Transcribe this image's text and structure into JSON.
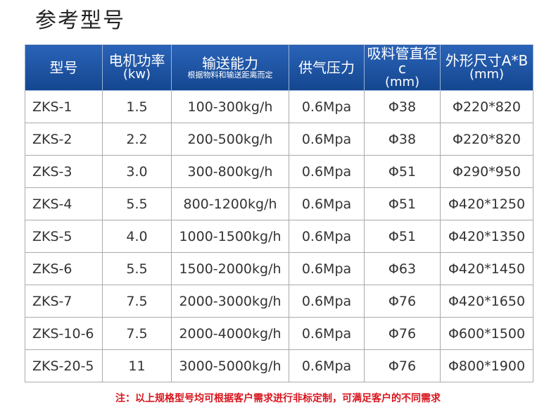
{
  "title": "参考型号",
  "table": {
    "header": [
      [
        "型号"
      ],
      [
        "电机功率",
        "(kw)"
      ],
      [
        "输送能力",
        "根据物料和输送距离而定"
      ],
      [
        "供气压力"
      ],
      [
        "吸料管直径c",
        "(mm)"
      ],
      [
        "外形尺寸A*B",
        "(mm)"
      ]
    ],
    "rows": [
      [
        "ZKS-1",
        "1.5",
        "100-300kg/h",
        "0.6Mpa",
        "Φ38",
        "Φ220*820"
      ],
      [
        "ZKS-2",
        "2.2",
        "200-500kg/h",
        "0.6Mpa",
        "Φ38",
        "Φ220*820"
      ],
      [
        "ZKS-3",
        "3.0",
        "300-800kg/h",
        "0.6Mpa",
        "Φ51",
        "Φ290*950"
      ],
      [
        "ZKS-4",
        "5.5",
        "800-1200kg/h",
        "0.6Mpa",
        "Φ51",
        "Φ420*1250"
      ],
      [
        "ZKS-5",
        "4.0",
        "1000-1500kg/h",
        "0.6Mpa",
        "Φ51",
        "Φ420*1350"
      ],
      [
        "ZKS-6",
        "5.5",
        "1500-2000kg/h",
        "0.6Mpa",
        "Φ63",
        "Φ420*1450"
      ],
      [
        "ZKS-7",
        "7.5",
        "2000-3000kg/h",
        "0.6Mpa",
        "Φ76",
        "Φ420*1650"
      ],
      [
        "ZKS-10-6",
        "7.5",
        "2000-4000kg/h",
        "0.6Mpa",
        "Φ76",
        "Φ600*1500"
      ],
      [
        "ZKS-20-5",
        "11",
        "3000-5000kg/h",
        "0.6Mpa",
        "Φ76",
        "Φ800*1900"
      ]
    ]
  },
  "note": "注：以上规格型号均可根据客户需求进行非标定制，可满足客户的不同需求"
}
